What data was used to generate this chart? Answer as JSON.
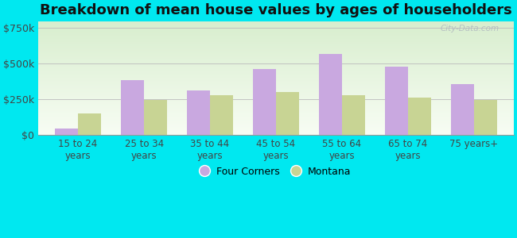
{
  "categories": [
    "15 to 24\nyears",
    "25 to 34\nyears",
    "35 to 44\nyears",
    "45 to 54\nyears",
    "55 to 64\nyears",
    "65 to 74\nyears",
    "75 years+"
  ],
  "four_corners": [
    45000,
    385000,
    315000,
    465000,
    570000,
    480000,
    360000
  ],
  "montana": [
    155000,
    245000,
    278000,
    300000,
    278000,
    263000,
    245000
  ],
  "four_corners_color": "#c9a8e0",
  "montana_color": "#c8d494",
  "title": "Breakdown of mean house values by ages of householders",
  "title_fontsize": 13,
  "ylabel_ticks": [
    0,
    250000,
    500000,
    750000
  ],
  "ylabel_labels": [
    "$0",
    "$250k",
    "$500k",
    "$750k"
  ],
  "ylim": [
    0,
    800000
  ],
  "outer_bg": "#00e8f0",
  "bar_width": 0.35,
  "legend_labels": [
    "Four Corners",
    "Montana"
  ],
  "watermark": "City-Data.com",
  "grad_top_color": "#e0f0d0",
  "grad_bottom_color": "#f5faf0"
}
